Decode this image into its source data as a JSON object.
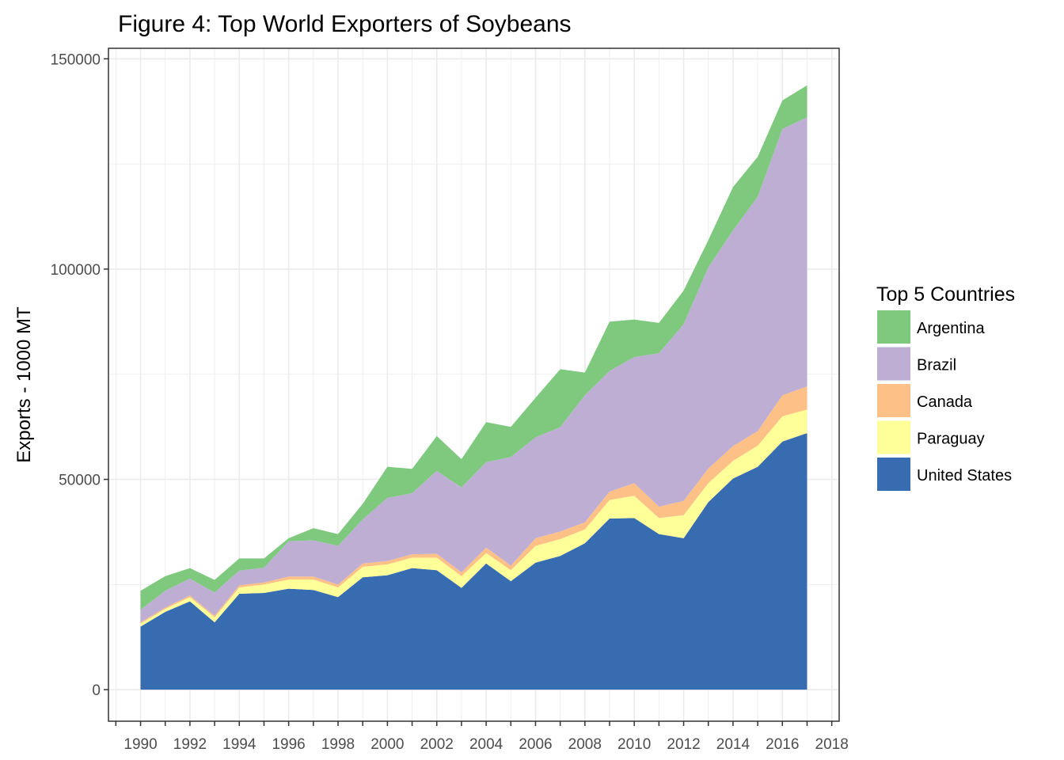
{
  "chart_data": {
    "type": "area",
    "stacked": true,
    "title": "Figure 4: Top World Exporters of Soybeans",
    "xlabel": "",
    "ylabel": "Exports - 1000 MT",
    "xlim": [
      1988.7,
      2018.3
    ],
    "ylim": [
      -7500,
      152500
    ],
    "x_ticks": [
      1990,
      1992,
      1994,
      1996,
      1998,
      2000,
      2002,
      2004,
      2006,
      2008,
      2010,
      2012,
      2014,
      2016,
      2018
    ],
    "x_tick_labels": [
      "1990",
      "1992",
      "1994",
      "1996",
      "1998",
      "2000",
      "2002",
      "2004",
      "2006",
      "2008",
      "2010",
      "2012",
      "2014",
      "2016",
      "2018"
    ],
    "y_ticks": [
      0,
      50000,
      100000,
      150000
    ],
    "y_tick_labels": [
      "0",
      "50000",
      "100000",
      "150000"
    ],
    "grid": true,
    "legend": {
      "title": "Top 5 Countries",
      "placement": "right",
      "entries": [
        "Argentina",
        "Brazil",
        "Canada",
        "Paraguay",
        "United States"
      ]
    },
    "x": [
      1990,
      1991,
      1992,
      1993,
      1994,
      1995,
      1996,
      1997,
      1998,
      1999,
      2000,
      2001,
      2002,
      2003,
      2004,
      2005,
      2006,
      2007,
      2008,
      2009,
      2010,
      2011,
      2012,
      2013,
      2014,
      2015,
      2016,
      2017
    ],
    "series": [
      {
        "name": "United States",
        "color": "#386cb0",
        "values": [
          15000,
          18500,
          21000,
          16000,
          22800,
          23000,
          24000,
          23700,
          22000,
          26700,
          27200,
          28900,
          28400,
          24200,
          30000,
          25800,
          30200,
          31800,
          34800,
          40700,
          40800,
          37000,
          36000,
          44600,
          50200,
          53000,
          59000,
          61000
        ]
      },
      {
        "name": "Paraguay",
        "color": "#ffff99",
        "values": [
          700,
          700,
          1000,
          1200,
          1500,
          2000,
          2200,
          2500,
          2300,
          2500,
          2600,
          2500,
          3000,
          2800,
          2500,
          2600,
          4000,
          4000,
          3300,
          4400,
          5300,
          3800,
          5500,
          4500,
          4200,
          5000,
          6000,
          5600
        ]
      },
      {
        "name": "Canada",
        "color": "#fdc086",
        "values": [
          300,
          300,
          400,
          400,
          500,
          500,
          700,
          700,
          700,
          800,
          800,
          800,
          900,
          900,
          1300,
          1100,
          1800,
          1800,
          1700,
          2000,
          3000,
          2700,
          3400,
          3500,
          3500,
          3500,
          5000,
          5500
        ]
      },
      {
        "name": "Brazil",
        "color": "#beaed4",
        "values": [
          3000,
          4000,
          4000,
          5500,
          3500,
          3500,
          8400,
          8600,
          9200,
          10500,
          15000,
          14500,
          19700,
          20200,
          20300,
          25800,
          24000,
          24800,
          30200,
          28700,
          30000,
          36500,
          42000,
          47800,
          51300,
          55700,
          63300,
          64000
        ]
      },
      {
        "name": "Argentina",
        "color": "#7fc97f",
        "values": [
          4500,
          3500,
          2500,
          3000,
          2900,
          2200,
          700,
          2900,
          2800,
          3700,
          7400,
          5800,
          8300,
          6700,
          9500,
          7200,
          9400,
          13800,
          5400,
          11700,
          8900,
          7200,
          8000,
          6500,
          10300,
          9500,
          6800,
          7600
        ]
      }
    ]
  }
}
